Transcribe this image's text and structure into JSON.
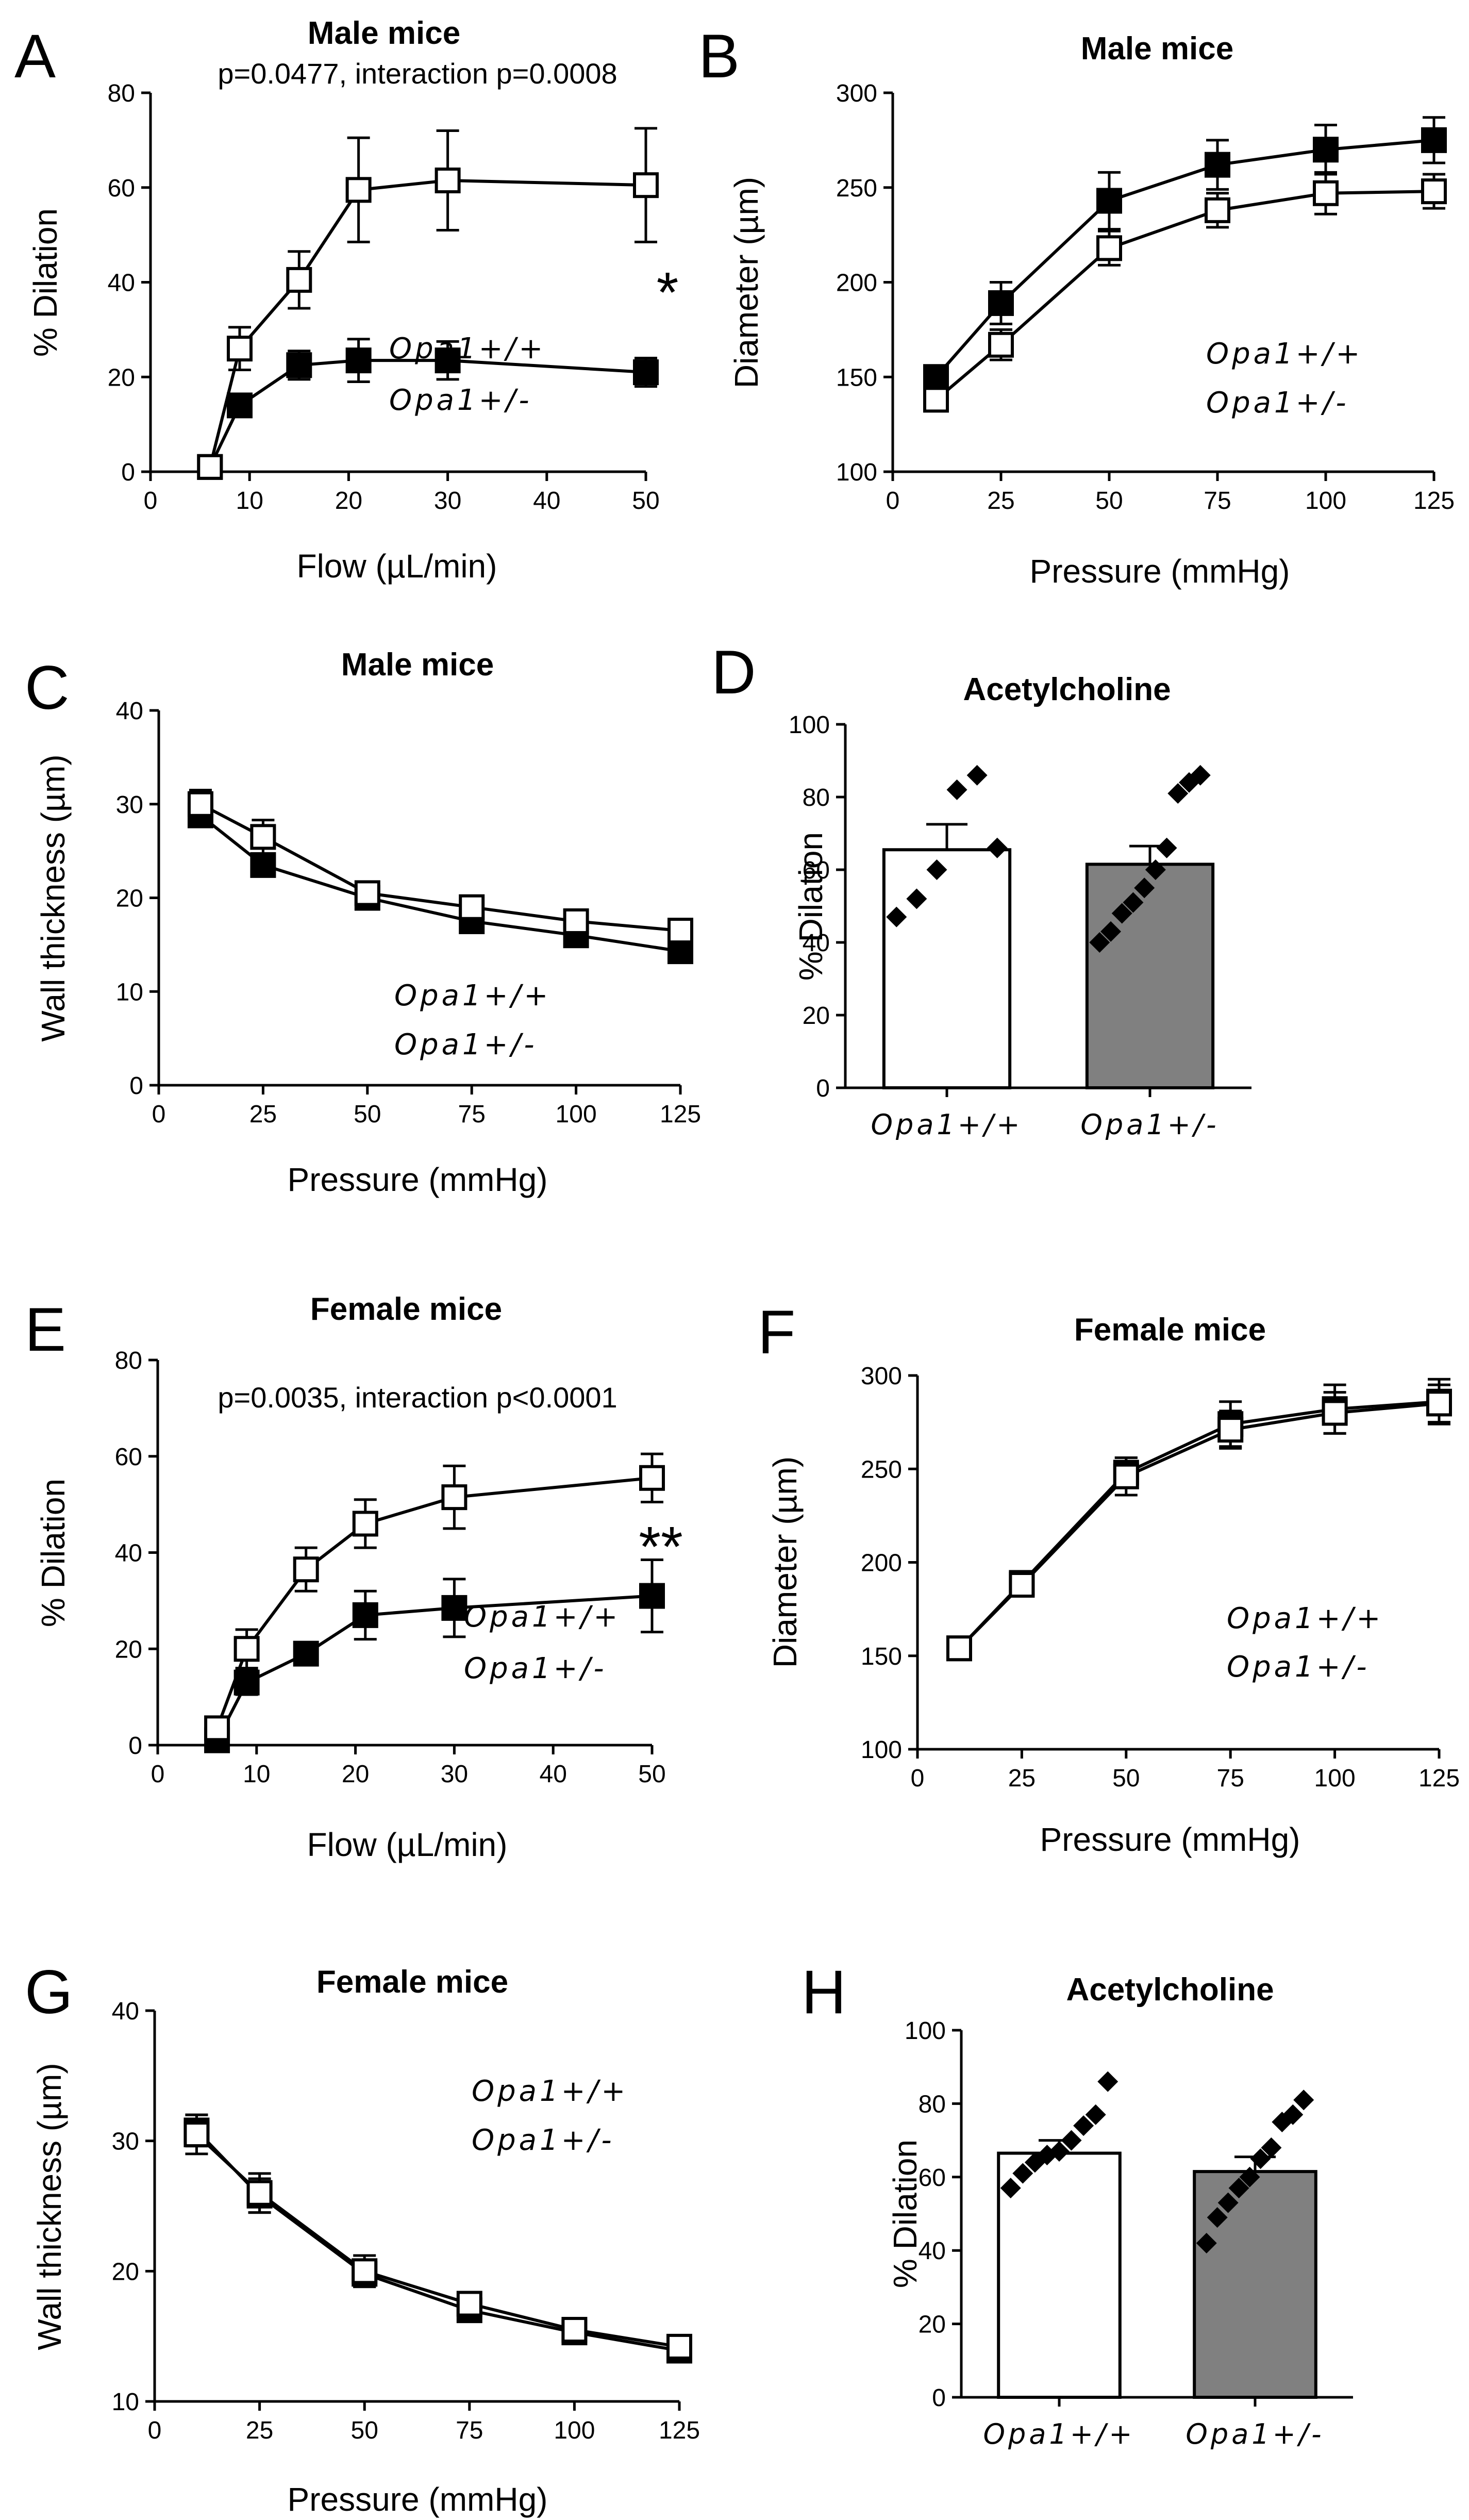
{
  "chart_data": [
    {
      "id": "A",
      "type": "line",
      "panel_label": "A",
      "title": "Male mice",
      "subtitle": "p=0.0477, interaction p=0.0008",
      "xlabel": "Flow (µL/min)",
      "ylabel": "% Dilation",
      "xlim": [
        0,
        50
      ],
      "ylim": [
        0,
        80
      ],
      "xticks": [
        "0",
        "10",
        "20",
        "30",
        "40",
        "50"
      ],
      "yticks": [
        "0",
        "20",
        "40",
        "60",
        "80"
      ],
      "significance": "*",
      "series": [
        {
          "name": "Opa1+/+",
          "marker": "open-square",
          "x": [
            6,
            9,
            15,
            21,
            30,
            50
          ],
          "values": [
            1,
            26,
            40.5,
            59.5,
            61.5,
            60.5
          ],
          "err": [
            0,
            4.5,
            6,
            11,
            10.5,
            12
          ]
        },
        {
          "name": "Opa1+/-",
          "marker": "filled-square",
          "x": [
            6,
            9,
            15,
            21,
            30,
            50
          ],
          "values": [
            1,
            14,
            22.5,
            23.5,
            23.5,
            21
          ],
          "err": [
            0,
            2,
            3,
            4.5,
            4,
            3
          ]
        }
      ]
    },
    {
      "id": "B",
      "type": "line",
      "panel_label": "B",
      "title": "Male mice",
      "xlabel": "Pressure (mmHg)",
      "ylabel": "Diameter (µm)",
      "xlim": [
        0,
        125
      ],
      "ylim": [
        100,
        300
      ],
      "xticks": [
        "0",
        "25",
        "50",
        "75",
        "100",
        "125"
      ],
      "yticks": [
        "100",
        "150",
        "200",
        "250",
        "300"
      ],
      "series": [
        {
          "name": "Opa1+/+",
          "marker": "open-square",
          "x": [
            10,
            25,
            50,
            75,
            100,
            125
          ],
          "values": [
            138,
            167,
            218,
            238,
            247,
            248
          ],
          "err": [
            4,
            8,
            9,
            9,
            11,
            9
          ]
        },
        {
          "name": "Opa1+/-",
          "marker": "filled-square",
          "x": [
            10,
            25,
            50,
            75,
            100,
            125
          ],
          "values": [
            150,
            189,
            243,
            262,
            270,
            275
          ],
          "err": [
            4,
            11,
            15,
            13,
            13,
            12
          ]
        }
      ]
    },
    {
      "id": "C",
      "type": "line",
      "panel_label": "C",
      "title": "Male mice",
      "xlabel": "Pressure (mmHg)",
      "ylabel": "Wall thickness (µm)",
      "xlim": [
        0,
        125
      ],
      "ylim": [
        0,
        40
      ],
      "xticks": [
        "0",
        "25",
        "50",
        "75",
        "100",
        "125"
      ],
      "yticks": [
        "0",
        "10",
        "20",
        "30",
        "40"
      ],
      "series": [
        {
          "name": "Opa1+/+",
          "marker": "open-square",
          "x": [
            10,
            25,
            50,
            75,
            100,
            125
          ],
          "values": [
            30,
            26.5,
            20.5,
            19,
            17.5,
            16.5
          ],
          "err": [
            1.5,
            1.8,
            1,
            0.8,
            0.8,
            0.8
          ]
        },
        {
          "name": "Opa1+/-",
          "marker": "filled-square",
          "x": [
            10,
            25,
            50,
            75,
            100,
            125
          ],
          "values": [
            28.8,
            23.5,
            20,
            17.5,
            16,
            14.3
          ],
          "err": [
            1.2,
            1,
            0.8,
            0.8,
            0.8,
            0.8
          ]
        }
      ]
    },
    {
      "id": "D",
      "type": "bar",
      "panel_label": "D",
      "title": "Acetylcholine",
      "ylabel": "% Dilation",
      "ylim": [
        0,
        100
      ],
      "yticks": [
        "0",
        "20",
        "40",
        "60",
        "80",
        "100"
      ],
      "categories": [
        "Opa1+/+",
        "Opa1+/-"
      ],
      "values": [
        65.5,
        61.5
      ],
      "err": [
        7,
        5
      ],
      "colors": [
        "#ffffff",
        "#808080"
      ],
      "points": [
        [
          47,
          52,
          60,
          82,
          86,
          66
        ],
        [
          40,
          43,
          48,
          51,
          55,
          60,
          66,
          81,
          84,
          86
        ]
      ]
    },
    {
      "id": "E",
      "type": "line",
      "panel_label": "E",
      "title": "Female mice",
      "subtitle": "p=0.0035, interaction p<0.0001",
      "xlabel": "Flow (µL/min)",
      "ylabel": "% Dilation",
      "xlim": [
        0,
        50
      ],
      "ylim": [
        0,
        80
      ],
      "xticks": [
        "0",
        "10",
        "20",
        "30",
        "40",
        "50"
      ],
      "yticks": [
        "0",
        "20",
        "40",
        "60",
        "80"
      ],
      "significance": "**",
      "series": [
        {
          "name": "Opa1+/+",
          "marker": "open-square",
          "x": [
            6,
            9,
            15,
            21,
            30,
            50
          ],
          "values": [
            3.5,
            20,
            36.5,
            46,
            51.5,
            55.5
          ],
          "err": [
            1,
            4,
            4.5,
            5,
            6.5,
            5
          ]
        },
        {
          "name": "Opa1+/-",
          "marker": "filled-square",
          "x": [
            6,
            9,
            15,
            21,
            30,
            50
          ],
          "values": [
            1,
            13,
            19,
            27,
            28.5,
            31
          ],
          "err": [
            0,
            2.5,
            2,
            5,
            6,
            7.5
          ]
        }
      ]
    },
    {
      "id": "F",
      "type": "line",
      "panel_label": "F",
      "title": "Female mice",
      "xlabel": "Pressure (mmHg)",
      "ylabel": "Diameter (µm)",
      "xlim": [
        0,
        125
      ],
      "ylim": [
        100,
        300
      ],
      "xticks": [
        "0",
        "25",
        "50",
        "75",
        "100",
        "125"
      ],
      "yticks": [
        "100",
        "150",
        "200",
        "250",
        "300"
      ],
      "series": [
        {
          "name": "Opa1+/+",
          "marker": "open-square",
          "x": [
            10,
            25,
            50,
            75,
            100,
            125
          ],
          "values": [
            154,
            188,
            246,
            271,
            280,
            285
          ],
          "err": [
            3,
            5,
            10,
            10,
            11,
            10
          ]
        },
        {
          "name": "Opa1+/-",
          "marker": "filled-square",
          "x": [
            10,
            25,
            50,
            75,
            100,
            125
          ],
          "values": [
            154,
            189,
            248,
            274,
            282,
            286
          ],
          "err": [
            3,
            5,
            8,
            12,
            13,
            12
          ]
        }
      ]
    },
    {
      "id": "G",
      "type": "line",
      "panel_label": "G",
      "title": "Female mice",
      "xlabel": "Pressure (mmHg)",
      "ylabel": "Wall thickness (µm)",
      "xlim": [
        0,
        125
      ],
      "ylim": [
        10,
        40
      ],
      "xticks": [
        "0",
        "25",
        "50",
        "75",
        "100",
        "125"
      ],
      "yticks": [
        "10",
        "20",
        "30",
        "40"
      ],
      "series": [
        {
          "name": "Opa1+/+",
          "marker": "open-square",
          "x": [
            10,
            25,
            50,
            75,
            100,
            125
          ],
          "values": [
            30.5,
            26,
            20,
            17.5,
            15.5,
            14.2
          ],
          "err": [
            1.5,
            1.5,
            1.2,
            0.8,
            0.7,
            0.7
          ]
        },
        {
          "name": "Opa1+/-",
          "marker": "filled-square",
          "x": [
            10,
            25,
            50,
            75,
            100,
            125
          ],
          "values": [
            30.8,
            25.8,
            19.8,
            17,
            15.3,
            13.9
          ],
          "err": [
            1.2,
            1.3,
            1,
            0.8,
            0.6,
            0.6
          ]
        }
      ]
    },
    {
      "id": "H",
      "type": "bar",
      "panel_label": "H",
      "title": "Acetylcholine",
      "ylabel": "% Dilation",
      "ylim": [
        0,
        100
      ],
      "yticks": [
        "0",
        "20",
        "40",
        "60",
        "80",
        "100"
      ],
      "categories": [
        "Opa1+/+",
        "Opa1+/-"
      ],
      "values": [
        66.5,
        61.5
      ],
      "err": [
        3.5,
        4
      ],
      "colors": [
        "#ffffff",
        "#808080"
      ],
      "points": [
        [
          57,
          61,
          64,
          66,
          67,
          70,
          74,
          77,
          86
        ],
        [
          42,
          49,
          53,
          57,
          60,
          65,
          68,
          75,
          77,
          81
        ]
      ]
    }
  ]
}
